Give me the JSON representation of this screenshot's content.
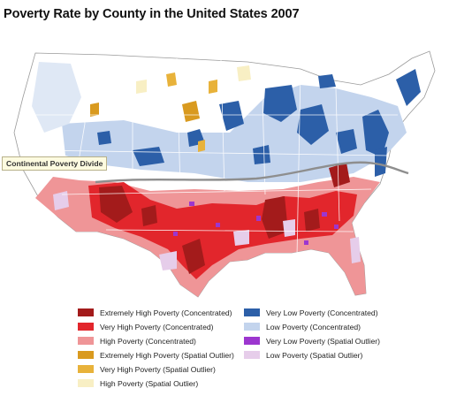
{
  "title": "Poverty Rate by County in the United States 2007",
  "annotation": "Continental Poverty Divide",
  "colors": {
    "extreme_high": "#a31b1b",
    "very_high": "#e2262c",
    "high": "#ef9597",
    "extreme_high_outlier": "#d99a1f",
    "very_high_outlier": "#e8b23a",
    "high_outlier": "#f8efc4",
    "very_low": "#2c5fa8",
    "low": "#c3d4ed",
    "very_low_outlier": "#9c36cf",
    "low_outlier": "#e6cdea",
    "divide_line": "#8e8e8e",
    "state_border": "#ffffff"
  },
  "legend": {
    "left": [
      {
        "label": "Extremely High Poverty (Concentrated)",
        "color": "#a31b1b"
      },
      {
        "label": "Very High Poverty (Concentrated)",
        "color": "#e2262c"
      },
      {
        "label": "High Poverty (Concentrated)",
        "color": "#ef9597"
      },
      {
        "label": "Extremely High Poverty (Spatial Outlier)",
        "color": "#d99a1f"
      },
      {
        "label": "Very High Poverty (Spatial Outlier)",
        "color": "#e8b23a"
      },
      {
        "label": "High Poverty (Spatial Outlier)",
        "color": "#f8efc4"
      }
    ],
    "right": [
      {
        "label": "Very Low Poverty (Concentrated)",
        "color": "#2c5fa8"
      },
      {
        "label": "Low Poverty (Concentrated)",
        "color": "#c3d4ed"
      },
      {
        "label": "Very Low Poverty (Spatial Outlier)",
        "color": "#9c36cf"
      },
      {
        "label": "Low Poverty (Spatial Outlier)",
        "color": "#e6cdea"
      }
    ]
  }
}
